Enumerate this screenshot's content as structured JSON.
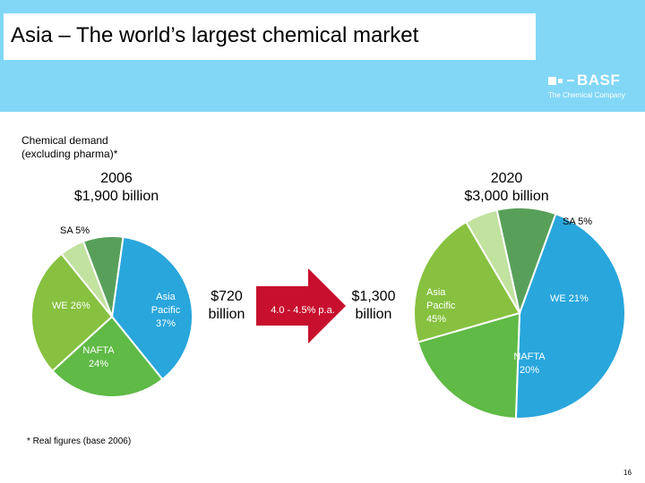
{
  "header": {
    "title": "Asia – The world’s largest chemical market",
    "logo_text": "BASF",
    "logo_tagline": "The Chemical Company"
  },
  "subtitle_line1": "Chemical demand",
  "subtitle_line2": "(excluding pharma)*",
  "pie_2006": {
    "year": "2006",
    "total": "$1,900 billion",
    "label_sa": "SA 5%",
    "label_we": "WE 26%",
    "label_nafta_1": "NAFTA",
    "label_nafta_2": "24%",
    "label_asia_1": "Asia",
    "label_asia_2": "Pacific",
    "label_asia_3": "37%"
  },
  "pie_2020": {
    "year": "2020",
    "total": "$3,000 billion",
    "label_sa": "SA 5%",
    "label_we": "WE 21%",
    "label_nafta_1": "NAFTA",
    "label_nafta_2": "20%",
    "label_asia_1": "Asia",
    "label_asia_2": "Pacific",
    "label_asia_3": "45%"
  },
  "asia_2006_amount_1": "$720",
  "asia_2006_amount_2": "billion",
  "growth_label": "4.0 - 4.5% p.a.",
  "asia_2020_amount_1": "$1,300",
  "asia_2020_amount_2": "billion",
  "footnote": "* Real figures (base 2006)",
  "page_number": "16",
  "colors": {
    "header_bg": "#82d7f7",
    "asia_pacific": "#29a6dc",
    "nafta": "#5fba46",
    "we": "#87c13f",
    "sa": "#c2e2a0",
    "other": "#58a05a",
    "arrow": "#c8102e"
  },
  "chart_data": [
    {
      "type": "pie",
      "year": "2006",
      "total": "$1,900 billion",
      "slices": [
        {
          "label": "Asia Pacific",
          "value": 37
        },
        {
          "label": "NAFTA",
          "value": 24
        },
        {
          "label": "WE",
          "value": 26
        },
        {
          "label": "SA",
          "value": 5
        },
        {
          "label": "",
          "value": 8
        }
      ]
    },
    {
      "type": "pie",
      "year": "2020",
      "total": "$3,000 billion",
      "slices": [
        {
          "label": "Asia Pacific",
          "value": 45
        },
        {
          "label": "NAFTA",
          "value": 20
        },
        {
          "label": "WE",
          "value": 21
        },
        {
          "label": "SA",
          "value": 5
        },
        {
          "label": "",
          "value": 9
        }
      ]
    }
  ]
}
